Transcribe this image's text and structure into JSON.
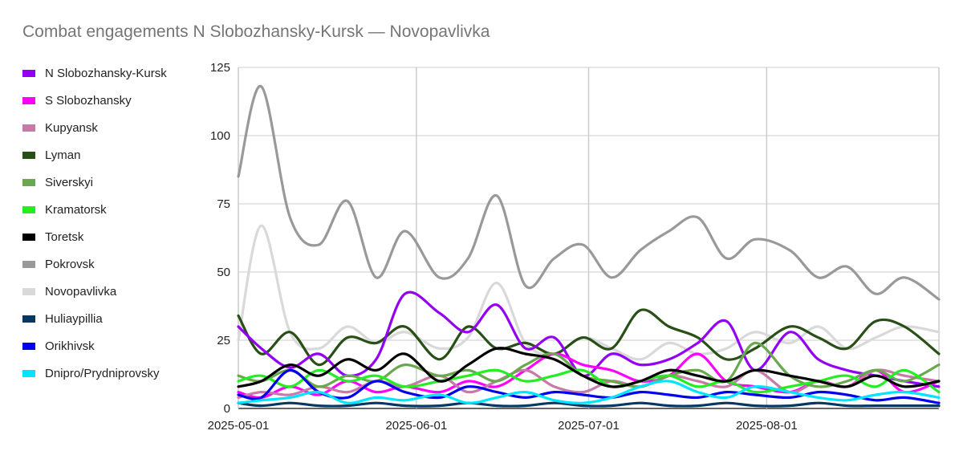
{
  "chart_data": {
    "type": "line",
    "title": "Combat engagements N Slobozhansky-Kursk — Novopavlivka",
    "xlabel": "",
    "ylabel": "",
    "xlim": [
      "2025-05-01",
      "2025-08-31"
    ],
    "ylim": [
      0,
      125
    ],
    "y_ticks": [
      0,
      25,
      50,
      75,
      100,
      125
    ],
    "x_ticks": [
      "2025-05-01",
      "2025-06-01",
      "2025-07-01",
      "2025-08-01"
    ],
    "grid": true,
    "legend_position": "left",
    "sample_dates": [
      "05-01",
      "05-05",
      "05-10",
      "05-15",
      "05-20",
      "05-25",
      "05-30",
      "06-05",
      "06-10",
      "06-15",
      "06-20",
      "06-25",
      "06-30",
      "07-05",
      "07-10",
      "07-15",
      "07-20",
      "07-25",
      "07-30",
      "08-05",
      "08-10",
      "08-15",
      "08-20",
      "08-25",
      "08-31"
    ],
    "series": [
      {
        "name": "N Slobozhansky-Kursk",
        "color": "#9400f4",
        "values": [
          30,
          22,
          15,
          20,
          12,
          18,
          42,
          35,
          28,
          38,
          22,
          26,
          12,
          20,
          16,
          18,
          24,
          32,
          14,
          28,
          18,
          14,
          12,
          10,
          8
        ]
      },
      {
        "name": "S Slobozhansky",
        "color": "#ff00ff",
        "values": [
          6,
          4,
          8,
          5,
          10,
          6,
          8,
          6,
          10,
          8,
          14,
          20,
          16,
          14,
          10,
          12,
          20,
          10,
          8,
          6,
          10,
          8,
          14,
          6,
          10
        ]
      },
      {
        "name": "Kupyansk",
        "color": "#c879a8",
        "values": [
          4,
          6,
          5,
          8,
          6,
          10,
          8,
          12,
          6,
          10,
          14,
          8,
          6,
          10,
          8,
          12,
          10,
          8,
          14,
          6,
          10,
          8,
          14,
          12,
          10
        ]
      },
      {
        "name": "Lyman",
        "color": "#285016",
        "values": [
          34,
          20,
          28,
          16,
          26,
          24,
          30,
          18,
          30,
          22,
          24,
          20,
          26,
          22,
          36,
          30,
          26,
          18,
          22,
          30,
          26,
          22,
          32,
          30,
          20
        ]
      },
      {
        "name": "Siverskyi",
        "color": "#6aa84f",
        "values": [
          12,
          10,
          14,
          8,
          12,
          10,
          16,
          12,
          14,
          10,
          16,
          20,
          12,
          10,
          8,
          12,
          14,
          10,
          24,
          12,
          8,
          10,
          14,
          10,
          16
        ]
      },
      {
        "name": "Kramatorsk",
        "color": "#22ee22",
        "values": [
          10,
          12,
          8,
          14,
          10,
          12,
          8,
          10,
          12,
          14,
          10,
          12,
          14,
          8,
          10,
          12,
          8,
          10,
          6,
          8,
          10,
          12,
          8,
          14,
          6
        ]
      },
      {
        "name": "Toretsk",
        "color": "#000000",
        "values": [
          8,
          10,
          16,
          12,
          18,
          14,
          20,
          10,
          16,
          22,
          20,
          18,
          12,
          8,
          10,
          14,
          12,
          10,
          14,
          12,
          10,
          8,
          12,
          8,
          10
        ]
      },
      {
        "name": "Pokrovsk",
        "color": "#999999",
        "values": [
          85,
          118,
          70,
          60,
          76,
          48,
          65,
          48,
          55,
          78,
          45,
          55,
          60,
          48,
          58,
          65,
          70,
          55,
          62,
          58,
          48,
          52,
          42,
          48,
          40
        ]
      },
      {
        "name": "Novopavlivka",
        "color": "#d9d9d9",
        "values": [
          25,
          67,
          28,
          22,
          30,
          24,
          28,
          22,
          26,
          46,
          24,
          20,
          26,
          22,
          18,
          24,
          20,
          22,
          28,
          24,
          30,
          22,
          26,
          30,
          28
        ]
      },
      {
        "name": "Huliaypillia",
        "color": "#073763",
        "values": [
          2,
          1,
          2,
          1,
          1,
          2,
          1,
          1,
          2,
          1,
          1,
          2,
          1,
          1,
          2,
          1,
          1,
          2,
          1,
          1,
          2,
          1,
          1,
          1,
          1
        ]
      },
      {
        "name": "Orikhivsk",
        "color": "#0000ee",
        "values": [
          5,
          4,
          14,
          6,
          4,
          10,
          6,
          4,
          8,
          6,
          4,
          6,
          5,
          4,
          6,
          5,
          4,
          6,
          5,
          4,
          6,
          5,
          3,
          4,
          2
        ]
      },
      {
        "name": "Dnipro/Prydniprovsky",
        "color": "#00e5ff",
        "values": [
          2,
          3,
          4,
          6,
          2,
          4,
          3,
          5,
          2,
          4,
          6,
          3,
          2,
          4,
          8,
          10,
          6,
          4,
          8,
          6,
          4,
          3,
          5,
          6,
          4
        ]
      }
    ]
  }
}
